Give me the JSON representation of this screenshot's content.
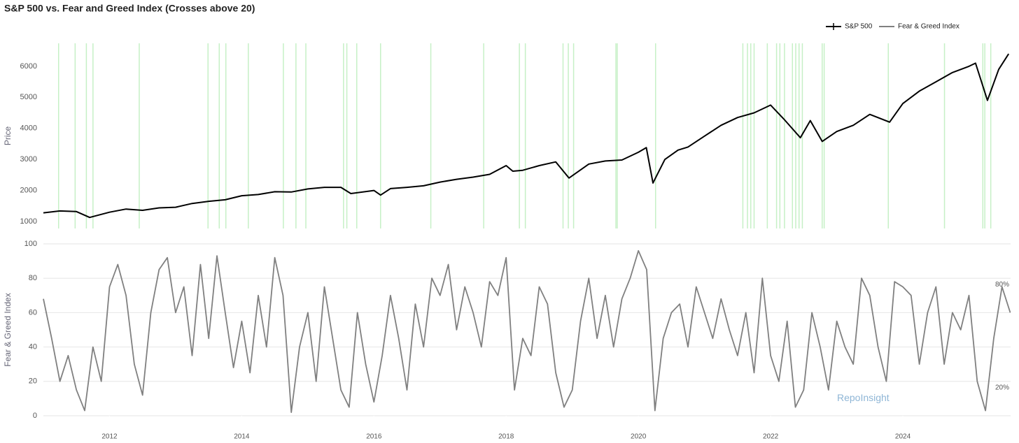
{
  "chart_data": [
    {
      "type": "line",
      "title": "S&P 500 vs. Fear and Greed Index (Crosses above 20)",
      "ylabel": "Price",
      "xlim": [
        2011.0,
        2025.63
      ],
      "ylim": [
        775,
        6740
      ],
      "yticks": [
        1000,
        2000,
        3000,
        4000,
        5000,
        6000
      ],
      "cross_color": "#c6f0c6",
      "crosses": [
        2011.23,
        2011.48,
        2011.65,
        2011.75,
        2012.45,
        2013.49,
        2013.66,
        2013.76,
        2014.1,
        2014.63,
        2014.82,
        2014.97,
        2015.54,
        2015.59,
        2015.74,
        2016.1,
        2016.86,
        2017.66,
        2018.2,
        2018.29,
        2018.86,
        2018.94,
        2019.02,
        2019.66,
        2019.68,
        2020.26,
        2021.58,
        2021.65,
        2021.7,
        2021.75,
        2021.95,
        2022.09,
        2022.14,
        2022.21,
        2022.33,
        2022.38,
        2022.43,
        2022.48,
        2022.78,
        2022.81,
        2023.78,
        2024.63,
        2025.21,
        2025.24,
        2025.33
      ],
      "x": [
        2011.0,
        2011.25,
        2011.5,
        2011.7,
        2012.0,
        2012.25,
        2012.5,
        2012.75,
        2013.0,
        2013.25,
        2013.5,
        2013.75,
        2014.0,
        2014.25,
        2014.5,
        2014.75,
        2015.0,
        2015.25,
        2015.5,
        2015.65,
        2016.0,
        2016.1,
        2016.25,
        2016.5,
        2016.75,
        2017.0,
        2017.25,
        2017.5,
        2017.75,
        2018.0,
        2018.1,
        2018.25,
        2018.5,
        2018.75,
        2018.95,
        2019.25,
        2019.5,
        2019.75,
        2020.0,
        2020.12,
        2020.22,
        2020.4,
        2020.6,
        2020.75,
        2021.0,
        2021.25,
        2021.5,
        2021.75,
        2022.0,
        2022.2,
        2022.45,
        2022.6,
        2022.78,
        2023.0,
        2023.25,
        2023.5,
        2023.8,
        2024.0,
        2024.25,
        2024.5,
        2024.75,
        2025.0,
        2025.1,
        2025.28,
        2025.45,
        2025.6
      ],
      "series": [
        {
          "name": "S&P 500",
          "color": "#000000",
          "values": [
            1280,
            1340,
            1320,
            1130,
            1300,
            1400,
            1360,
            1440,
            1460,
            1580,
            1650,
            1700,
            1830,
            1870,
            1960,
            1950,
            2050,
            2100,
            2100,
            1900,
            2000,
            1850,
            2060,
            2100,
            2150,
            2270,
            2360,
            2430,
            2520,
            2800,
            2620,
            2650,
            2800,
            2920,
            2400,
            2850,
            2950,
            2980,
            3230,
            3380,
            2240,
            3000,
            3300,
            3400,
            3750,
            4100,
            4350,
            4500,
            4750,
            4300,
            3700,
            4250,
            3580,
            3900,
            4100,
            4450,
            4200,
            4800,
            5200,
            5500,
            5800,
            6000,
            6100,
            4900,
            5900,
            6400
          ]
        }
      ]
    },
    {
      "type": "line",
      "ylabel": "Fear & Greed Index",
      "xlim": [
        2011.0,
        2025.63
      ],
      "ylim": [
        0,
        100
      ],
      "yticks": [
        0,
        20,
        40,
        60,
        80,
        100
      ],
      "xticks": [
        2012,
        2014,
        2016,
        2018,
        2020,
        2022,
        2024
      ],
      "annotations": [
        {
          "text": "80%",
          "x": 2025.63,
          "y": 80
        },
        {
          "text": "20%",
          "x": 2025.63,
          "y": 20
        },
        {
          "text": "RepoInsight",
          "x": 2023.4,
          "y": 10
        }
      ],
      "x": [
        2011.0,
        2011.125,
        2011.25,
        2011.375,
        2011.5,
        2011.625,
        2011.75,
        2011.875,
        2012.0,
        2012.125,
        2012.25,
        2012.375,
        2012.5,
        2012.625,
        2012.75,
        2012.875,
        2013.0,
        2013.125,
        2013.25,
        2013.375,
        2013.5,
        2013.625,
        2013.75,
        2013.875,
        2014.0,
        2014.125,
        2014.25,
        2014.375,
        2014.5,
        2014.625,
        2014.75,
        2014.875,
        2015.0,
        2015.125,
        2015.25,
        2015.375,
        2015.5,
        2015.625,
        2015.75,
        2015.875,
        2016.0,
        2016.125,
        2016.25,
        2016.375,
        2016.5,
        2016.625,
        2016.75,
        2016.875,
        2017.0,
        2017.125,
        2017.25,
        2017.375,
        2017.5,
        2017.625,
        2017.75,
        2017.875,
        2018.0,
        2018.125,
        2018.25,
        2018.375,
        2018.5,
        2018.625,
        2018.75,
        2018.875,
        2019.0,
        2019.125,
        2019.25,
        2019.375,
        2019.5,
        2019.625,
        2019.75,
        2019.875,
        2020.0,
        2020.125,
        2020.25,
        2020.375,
        2020.5,
        2020.625,
        2020.75,
        2020.875,
        2021.0,
        2021.125,
        2021.25,
        2021.375,
        2021.5,
        2021.625,
        2021.75,
        2021.875,
        2022.0,
        2022.125,
        2022.25,
        2022.375,
        2022.5,
        2022.625,
        2022.75,
        2022.875,
        2023.0,
        2023.125,
        2023.25,
        2023.375,
        2023.5,
        2023.625,
        2023.75,
        2023.875,
        2024.0,
        2024.125,
        2024.25,
        2024.375,
        2024.5,
        2024.625,
        2024.75,
        2024.875,
        2025.0,
        2025.125,
        2025.25,
        2025.375,
        2025.5,
        2025.625
      ],
      "series": [
        {
          "name": "Fear & Greed Index",
          "color": "#808080",
          "values": [
            68,
            45,
            20,
            35,
            15,
            3,
            40,
            20,
            75,
            88,
            70,
            30,
            12,
            60,
            85,
            92,
            60,
            75,
            35,
            88,
            45,
            93,
            60,
            28,
            55,
            25,
            70,
            40,
            92,
            70,
            2,
            40,
            60,
            20,
            75,
            45,
            15,
            5,
            60,
            30,
            8,
            35,
            70,
            45,
            15,
            65,
            40,
            80,
            70,
            88,
            50,
            75,
            60,
            40,
            78,
            70,
            92,
            15,
            45,
            35,
            75,
            65,
            25,
            5,
            15,
            55,
            80,
            45,
            70,
            40,
            68,
            80,
            96,
            85,
            3,
            45,
            60,
            65,
            40,
            75,
            60,
            45,
            68,
            50,
            35,
            60,
            25,
            80,
            35,
            20,
            55,
            5,
            15,
            60,
            40,
            15,
            55,
            40,
            30,
            80,
            70,
            40,
            20,
            78,
            75,
            70,
            30,
            60,
            75,
            30,
            60,
            50,
            70,
            20,
            3,
            45,
            75,
            60
          ]
        }
      ]
    }
  ]
}
